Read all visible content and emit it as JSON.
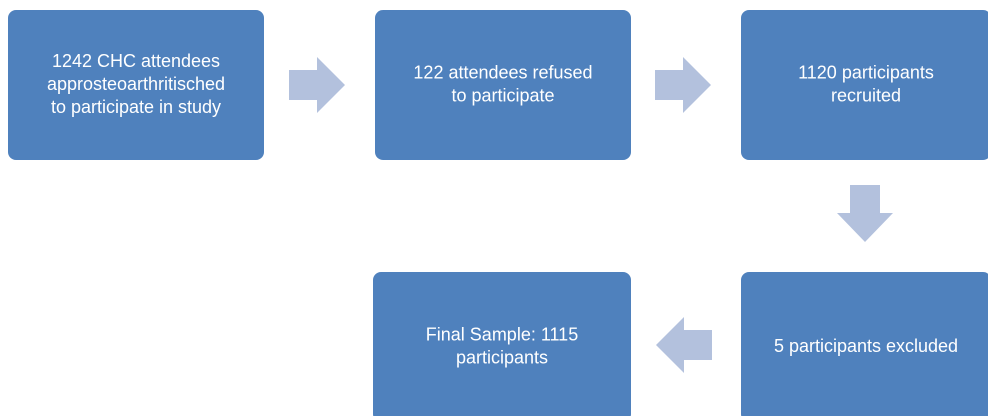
{
  "nodes": [
    {
      "lines": [
        "1242 CHC attendees",
        "approsteoarthritisched",
        "to participate in study"
      ]
    },
    {
      "lines": [
        "122 attendees refused",
        "to participate"
      ]
    },
    {
      "lines": [
        "1120 participants",
        "recruited"
      ]
    },
    {
      "lines": [
        "5 participants excluded"
      ]
    },
    {
      "lines": [
        "Final Sample: 1115",
        "participants"
      ]
    }
  ]
}
